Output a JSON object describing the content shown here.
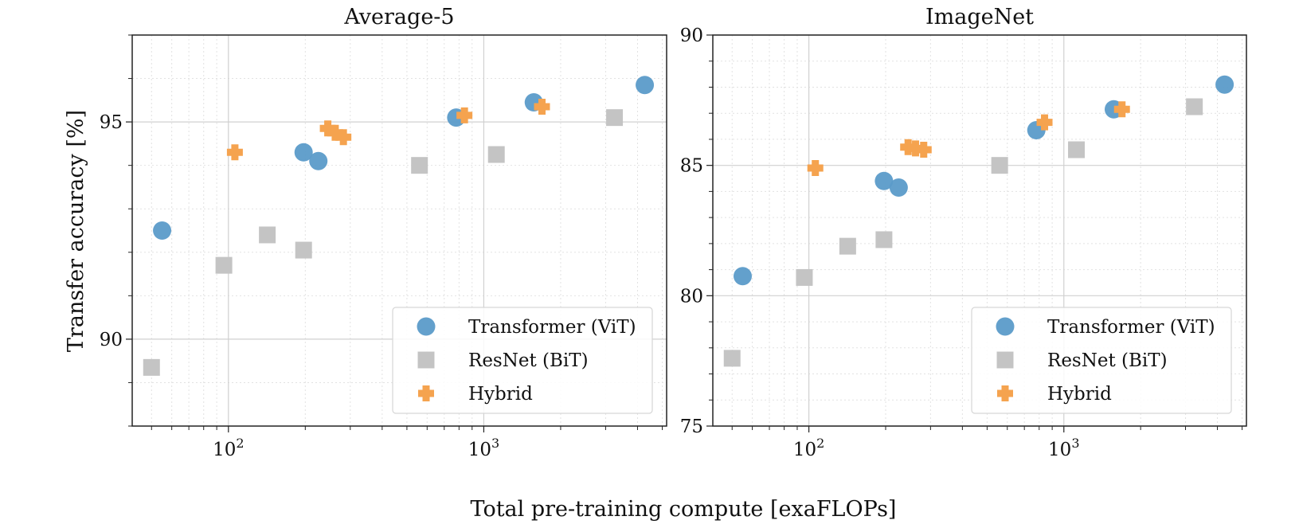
{
  "figure": {
    "xlabel": "Total pre-training compute [exaFLOPs]",
    "ylabel": "Transfer accuracy [%]"
  },
  "colors": {
    "vit": "#5b9bc9",
    "bit": "#c4c4c4",
    "hybrid": "#f5a34f"
  },
  "chart_data": [
    {
      "type": "scatter",
      "title": "Average-5",
      "xscale": "log",
      "xlim": [
        42,
        5200
      ],
      "ylim": [
        88,
        97
      ],
      "xticks": [
        {
          "value": 100,
          "base": "10",
          "exp": "2"
        },
        {
          "value": 1000,
          "base": "10",
          "exp": "3"
        }
      ],
      "yticks": [
        90,
        95
      ],
      "grid": true,
      "legend": "lower-right",
      "series": [
        {
          "name": "Transformer (ViT)",
          "marker": "circle",
          "color": "#5b9bc9",
          "points": [
            [
              55,
              92.5
            ],
            [
              197,
              94.3
            ],
            [
              225,
              94.1
            ],
            [
              780,
              95.1
            ],
            [
              1570,
              95.45
            ],
            [
              4270,
              95.85
            ]
          ]
        },
        {
          "name": "ResNet (BiT)",
          "marker": "square",
          "color": "#c4c4c4",
          "points": [
            [
              50,
              89.35
            ],
            [
              96,
              91.7
            ],
            [
              142,
              92.4
            ],
            [
              197,
              92.05
            ],
            [
              560,
              94.0
            ],
            [
              1120,
              94.25
            ],
            [
              3250,
              95.1
            ]
          ]
        },
        {
          "name": "Hybrid",
          "marker": "plus",
          "color": "#f5a34f",
          "points": [
            [
              106,
              94.3
            ],
            [
              245,
              94.85
            ],
            [
              262,
              94.75
            ],
            [
              282,
              94.65
            ],
            [
              840,
              95.15
            ],
            [
              1690,
              95.35
            ]
          ]
        }
      ]
    },
    {
      "type": "scatter",
      "title": "ImageNet",
      "xscale": "log",
      "xlim": [
        42,
        5200
      ],
      "ylim": [
        75,
        90
      ],
      "xticks": [
        {
          "value": 100,
          "base": "10",
          "exp": "2"
        },
        {
          "value": 1000,
          "base": "10",
          "exp": "3"
        }
      ],
      "yticks": [
        75,
        80,
        85,
        90
      ],
      "grid": true,
      "legend": "lower-right",
      "series": [
        {
          "name": "Transformer (ViT)",
          "marker": "circle",
          "color": "#5b9bc9",
          "points": [
            [
              55,
              80.75
            ],
            [
              197,
              84.4
            ],
            [
              225,
              84.15
            ],
            [
              780,
              86.35
            ],
            [
              1570,
              87.15
            ],
            [
              4270,
              88.1
            ]
          ]
        },
        {
          "name": "ResNet (BiT)",
          "marker": "square",
          "color": "#c4c4c4",
          "points": [
            [
              50,
              77.6
            ],
            [
              96,
              80.7
            ],
            [
              142,
              81.9
            ],
            [
              197,
              82.15
            ],
            [
              560,
              85.0
            ],
            [
              1120,
              85.6
            ],
            [
              3250,
              87.25
            ]
          ]
        },
        {
          "name": "Hybrid",
          "marker": "plus",
          "color": "#f5a34f",
          "points": [
            [
              106,
              84.9
            ],
            [
              245,
              85.7
            ],
            [
              262,
              85.65
            ],
            [
              282,
              85.6
            ],
            [
              840,
              86.65
            ],
            [
              1690,
              87.15
            ]
          ]
        }
      ]
    }
  ]
}
